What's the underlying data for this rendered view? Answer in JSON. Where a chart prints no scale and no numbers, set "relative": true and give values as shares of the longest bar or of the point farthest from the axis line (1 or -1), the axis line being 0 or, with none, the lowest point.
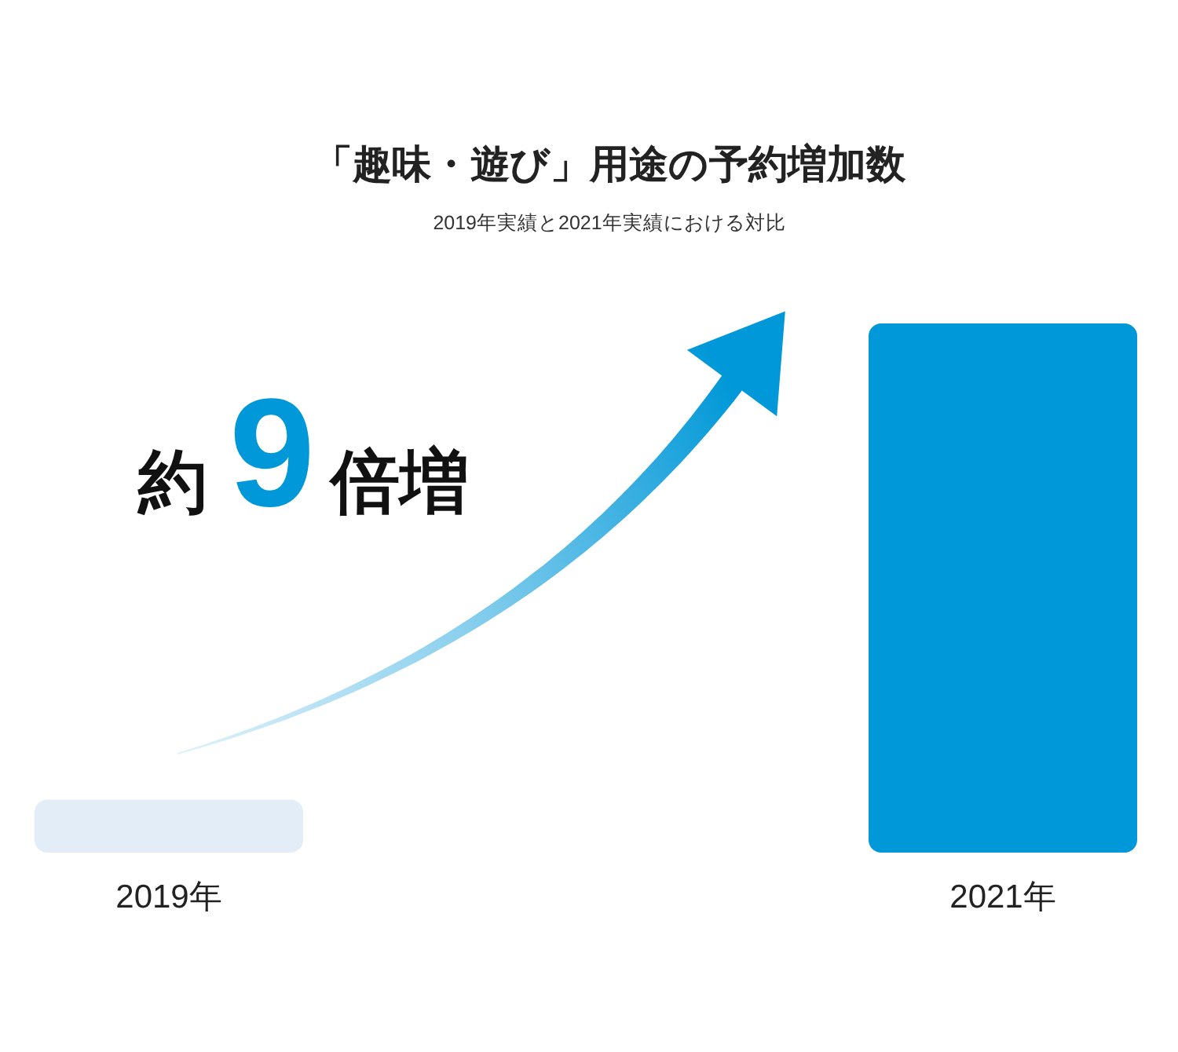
{
  "chart_data": {
    "type": "bar",
    "title": "「趣味・遊び」用途の予約増加数",
    "subtitle": "2019年実績と2021年実績における対比",
    "categories": [
      "2019年",
      "2021年"
    ],
    "values": [
      0.1,
      1
    ],
    "colors": [
      "#e3edf8",
      "#0098d8"
    ],
    "relative": true,
    "annotations": [
      "約9倍増"
    ]
  }
}
